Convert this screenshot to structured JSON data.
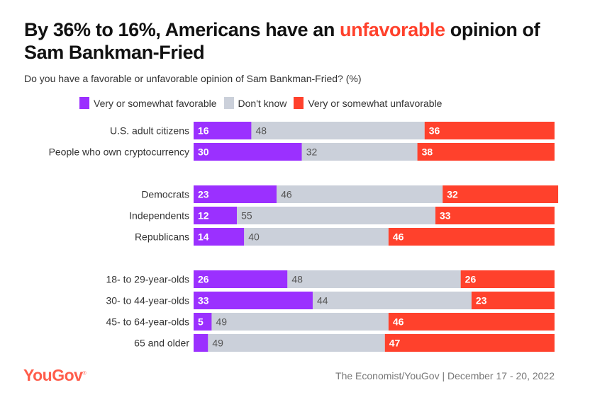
{
  "header": {
    "title_part1": "By 36% to 16%, Americans have an ",
    "title_highlight": "unfavorable",
    "title_part2": " opinion of Sam Bankman-Fried",
    "subtitle": "Do you have a favorable or unfavorable opinion of Sam Bankman-Fried? (%)"
  },
  "footer": {
    "logo": "YouGov",
    "logo_mark": "®",
    "source": "The Economist/YouGov | December 17 - 20, 2022"
  },
  "chart_data": {
    "type": "bar",
    "orientation": "horizontal",
    "stacked": true,
    "title": "By 36% to 16%, Americans have an unfavorable opinion of Sam Bankman-Fried",
    "subtitle": "Do you have a favorable or unfavorable opinion of Sam Bankman-Fried? (%)",
    "xlim": [
      0,
      100
    ],
    "grid": false,
    "legend_position": "top",
    "categories": [
      "U.S. adult citizens",
      "People who own cryptocurrency",
      "Democrats",
      "Independents",
      "Republicans",
      "18- to 29-year-olds",
      "30- to 44-year-olds",
      "45- to 64-year-olds",
      "65 and older"
    ],
    "groups": [
      [
        0,
        1
      ],
      [
        2,
        3,
        4
      ],
      [
        5,
        6,
        7,
        8
      ]
    ],
    "series": [
      {
        "name": "Very or somewhat favorable",
        "color": "#9b30ff",
        "label_color": "#ffffff",
        "values": [
          16,
          30,
          23,
          12,
          14,
          26,
          33,
          5,
          4
        ],
        "show_labels": [
          true,
          true,
          true,
          true,
          true,
          true,
          true,
          true,
          false
        ]
      },
      {
        "name": "Don't know",
        "color": "#cbd0da",
        "label_color": "#555555",
        "values": [
          48,
          32,
          46,
          55,
          40,
          48,
          44,
          49,
          49
        ],
        "show_labels": [
          true,
          true,
          true,
          true,
          true,
          true,
          true,
          true,
          true
        ]
      },
      {
        "name": "Very or somewhat unfavorable",
        "color": "#ff412c",
        "label_color": "#ffffff",
        "values": [
          36,
          38,
          32,
          33,
          46,
          26,
          23,
          46,
          47
        ],
        "show_labels": [
          true,
          true,
          true,
          true,
          true,
          true,
          true,
          true,
          true
        ]
      }
    ]
  }
}
